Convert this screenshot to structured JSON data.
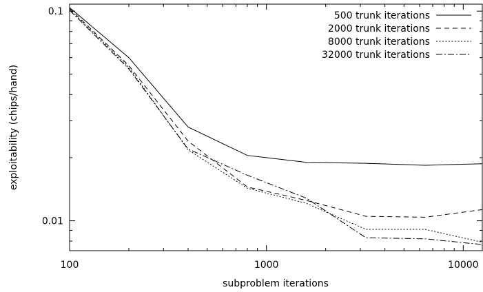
{
  "chart_data": {
    "type": "line",
    "xlabel": "subproblem iterations",
    "ylabel": "exploitability (chips/hand)",
    "x_scale": "log",
    "y_scale": "log",
    "xlim": [
      100,
      12500
    ],
    "ylim": [
      0.0072,
      0.108
    ],
    "grid": false,
    "legend_position": "top-right",
    "x_ticks": [
      {
        "value": 100,
        "label": "100"
      },
      {
        "value": 1000,
        "label": "1000"
      },
      {
        "value": 10000,
        "label": "10000"
      }
    ],
    "y_ticks": [
      {
        "value": 0.1,
        "label": "0.1"
      },
      {
        "value": 0.01,
        "label": "0.01"
      }
    ],
    "series": [
      {
        "name": "500 trunk iterations",
        "dash": "solid",
        "x": [
          100,
          200,
          400,
          800,
          1600,
          3200,
          6400,
          12500
        ],
        "y": [
          0.104,
          0.06,
          0.028,
          0.0205,
          0.019,
          0.0188,
          0.0184,
          0.0187
        ]
      },
      {
        "name": "2000 trunk iterations",
        "dash": "dashed",
        "x": [
          100,
          200,
          400,
          800,
          1600,
          3200,
          6400,
          12500
        ],
        "y": [
          0.103,
          0.055,
          0.024,
          0.0145,
          0.0125,
          0.0105,
          0.0104,
          0.0113
        ]
      },
      {
        "name": "8000 trunk iterations",
        "dash": "dotted",
        "x": [
          100,
          200,
          400,
          800,
          1600,
          3200,
          6400,
          12500
        ],
        "y": [
          0.102,
          0.054,
          0.0218,
          0.0143,
          0.0121,
          0.0091,
          0.0091,
          0.0079
        ]
      },
      {
        "name": "32000 trunk iterations",
        "dash": "dashdot",
        "x": [
          100,
          200,
          400,
          800,
          1600,
          3200,
          6400,
          12500
        ],
        "y": [
          0.101,
          0.053,
          0.022,
          0.0165,
          0.0128,
          0.0083,
          0.0082,
          0.0077
        ]
      }
    ]
  }
}
